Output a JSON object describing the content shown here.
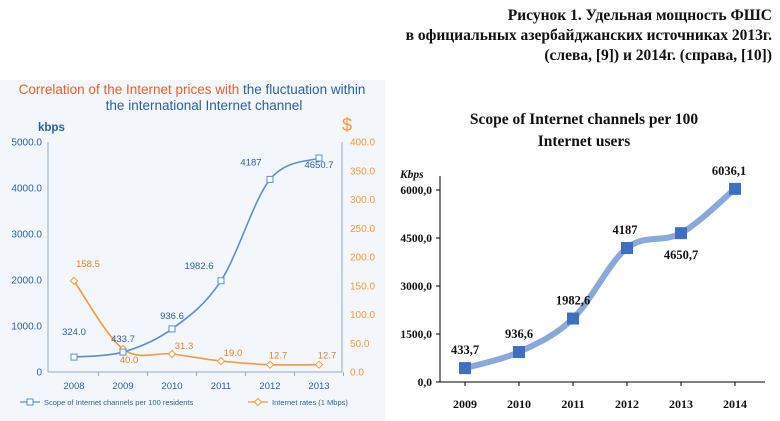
{
  "figure_caption": [
    "Рисунок 1. Удельная мощность ФШС",
    "в официальных азербайджанских источниках 2013г.",
    "(слева, [9]) и 2014г. (справа, [10])"
  ],
  "chart_data": [
    {
      "type": "line",
      "title_parts": [
        {
          "text": "Correlation of the Internet prices with ",
          "color": "#e8602c"
        },
        {
          "text": "the fluctuation within",
          "color": "#2f5f9e"
        }
      ],
      "title_line2": "the international Internet channel",
      "left_axis_unit": "kbps",
      "right_axis_unit": "$",
      "categories": [
        "2008",
        "2009",
        "2010",
        "2011",
        "2012",
        "2013"
      ],
      "ylim": [
        0,
        5000
      ],
      "y_ticks": [
        "0",
        "1000.0",
        "2000.0",
        "3000.0",
        "4000.0",
        "5000.0"
      ],
      "y2lim": [
        0,
        400
      ],
      "y2_ticks": [
        "0.0",
        "50.0",
        "100.0",
        "150.0",
        "200.0",
        "250.0",
        "300.0",
        "350.0",
        "400.0"
      ],
      "series": [
        {
          "name": "Scope of Internet channels per 100 residents",
          "axis": "left",
          "color": "#5b8fd1",
          "marker": "square",
          "values": [
            324.0,
            433.7,
            936.6,
            1982.6,
            4187,
            4650.7
          ],
          "labels": [
            "324.0",
            "433.7",
            "936.6",
            "1982.6",
            "4187",
            "4650.7"
          ]
        },
        {
          "name": "Internet rates (1 Mbps)",
          "axis": "right",
          "color": "#f29b3c",
          "marker": "diamond",
          "values": [
            158.5,
            40.0,
            31.3,
            19.0,
            12.7,
            12.7
          ],
          "labels": [
            "158.5",
            "40.0",
            "31.3",
            "19.0",
            "12.7",
            "12.7"
          ]
        }
      ],
      "grid": false,
      "legend": "bottom"
    },
    {
      "type": "line",
      "title": "Scope of Internet channels per 100 Internet users",
      "title_lines": [
        "Scope of Internet channels per 100",
        "Internet users"
      ],
      "ylabel": "Kbps",
      "categories": [
        "2009",
        "2010",
        "2011",
        "2012",
        "2013",
        "2014"
      ],
      "ylim": [
        0,
        6000
      ],
      "y_ticks": [
        "0,0",
        "1500,0",
        "3000,0",
        "4500,0",
        "6000,0"
      ],
      "series": [
        {
          "color": "#7d9fd6",
          "marker_color": "#3e6fc2",
          "values": [
            433.7,
            936.6,
            1982.6,
            4187,
            4650.7,
            6036.1
          ],
          "labels": [
            "433,7",
            "936,6",
            "1982,6",
            "4187",
            "4650,7",
            "6036,1"
          ]
        }
      ],
      "grid": false,
      "legend": "none"
    }
  ]
}
